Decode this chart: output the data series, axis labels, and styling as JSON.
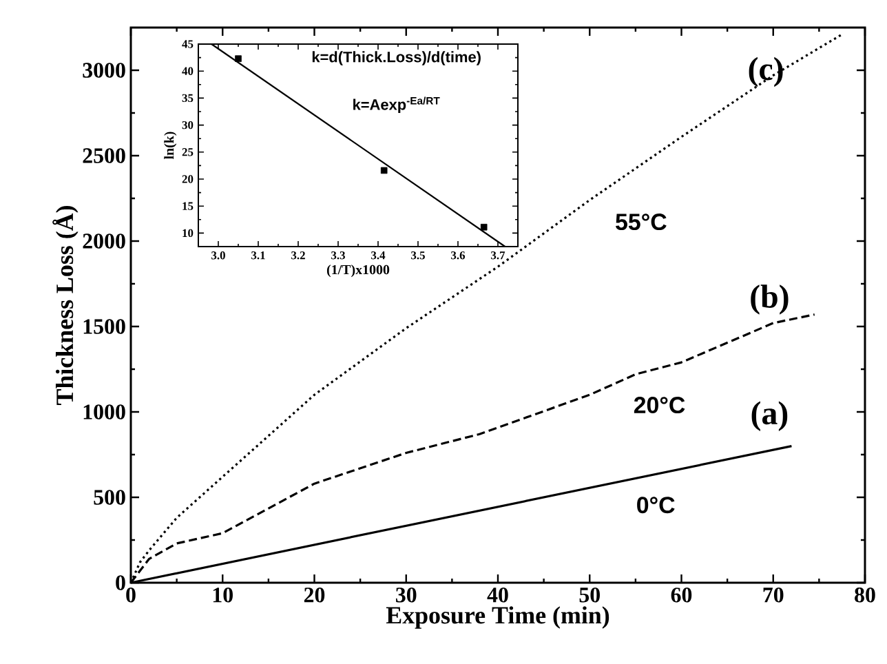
{
  "chart_data": [
    {
      "type": "line",
      "xlabel": "Exposure Time (min)",
      "ylabel": "Thickness Loss (Å)",
      "xlim": [
        0,
        80
      ],
      "ylim": [
        0,
        3250
      ],
      "xticks": [
        0,
        10,
        20,
        30,
        40,
        50,
        60,
        70,
        80
      ],
      "yticks": [
        0,
        500,
        1000,
        1500,
        2000,
        2500,
        3000
      ],
      "series": [
        {
          "color": "#000000",
          "line_style": "solid",
          "x": [
            0,
            72
          ],
          "values": [
            0,
            800
          ]
        },
        {
          "color": "#000000",
          "line_style": "dashed",
          "x": [
            0,
            2,
            5,
            10,
            20,
            30,
            38,
            50,
            55,
            60,
            70,
            74.5
          ],
          "values": [
            0,
            140,
            230,
            290,
            580,
            760,
            870,
            1100,
            1220,
            1290,
            1520,
            1570
          ]
        },
        {
          "color": "#000000",
          "line_style": "dotted",
          "x": [
            0,
            1,
            2,
            5,
            10,
            20,
            30,
            40,
            50,
            60,
            70,
            77.5
          ],
          "values": [
            0,
            120,
            190,
            380,
            620,
            1100,
            1490,
            1850,
            2240,
            2610,
            2970,
            3210
          ]
        }
      ],
      "annotations": [
        "(a)",
        "(b)",
        "(c)",
        "0°C",
        "20°C",
        "55°C"
      ]
    },
    {
      "type": "scatter",
      "xlabel": "(1/T)x1000",
      "ylabel": "ln(k)",
      "xlim": [
        2.95,
        3.75
      ],
      "ylim": [
        7.5,
        45
      ],
      "xticks": [
        {
          "value": 3.0,
          "label": "3.0"
        },
        3.1,
        3.2,
        3.3,
        3.4,
        3.5,
        3.6,
        3.7
      ],
      "yticks": [
        10,
        15,
        20,
        25,
        30,
        35,
        40,
        45
      ],
      "series": [
        {
          "type": "scatter",
          "marker": "square",
          "color": "#000000",
          "x": [
            3.05,
            3.415,
            3.665
          ],
          "values": [
            42.3,
            21.6,
            11.1
          ]
        },
        {
          "type": "line",
          "color": "#000000",
          "line_style": "solid",
          "x": [
            2.983,
            3.718
          ],
          "values": [
            45,
            7.5
          ]
        }
      ],
      "annotations": [
        "k=d(Thick.Loss)/d(time)",
        "k=Aexp$^{-Ea/RT}$"
      ]
    }
  ]
}
